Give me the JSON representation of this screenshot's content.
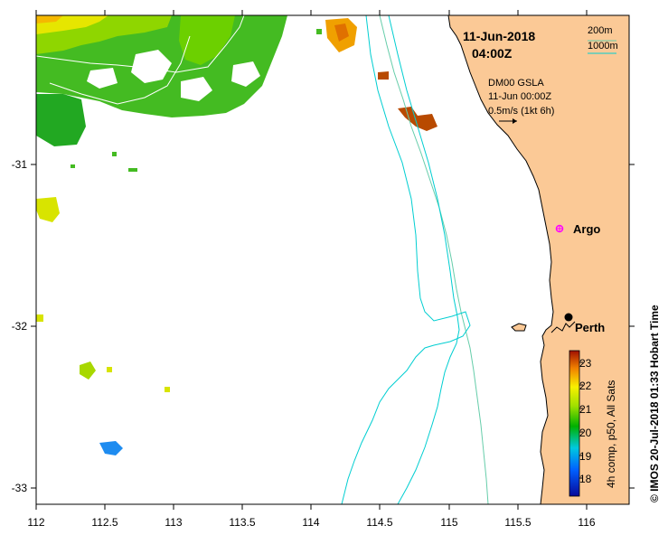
{
  "map": {
    "x_ticks": [
      "112",
      "112.5",
      "113",
      "113.5",
      "114",
      "114.5",
      "115",
      "115.5",
      "116"
    ],
    "y_ticks": [
      "-31",
      "-32",
      "-33"
    ]
  },
  "title": {
    "date": "11-Jun-2018",
    "time": "04:00Z"
  },
  "depth_legend": {
    "shallow": "200m",
    "deep": "1000m"
  },
  "current_legend": {
    "product": "DM00 GSLA",
    "time": "11-Jun 00:00Z",
    "scale": "0.5m/s (1kt 6h)"
  },
  "places": {
    "argo": "Argo",
    "perth": "Perth"
  },
  "colorbar": {
    "label": "4h comp, p50, All Sats",
    "ticks": [
      "23",
      "22",
      "21",
      "20",
      "19",
      "18"
    ]
  },
  "credit": "© IMOS 20-Jul-2018 01:33 Hobart Time",
  "colors": {
    "land": "#fbc996",
    "isobath_200": "#66cdaa",
    "isobath_1000": "#00ced1",
    "argo_marker": "#ff00ff"
  }
}
